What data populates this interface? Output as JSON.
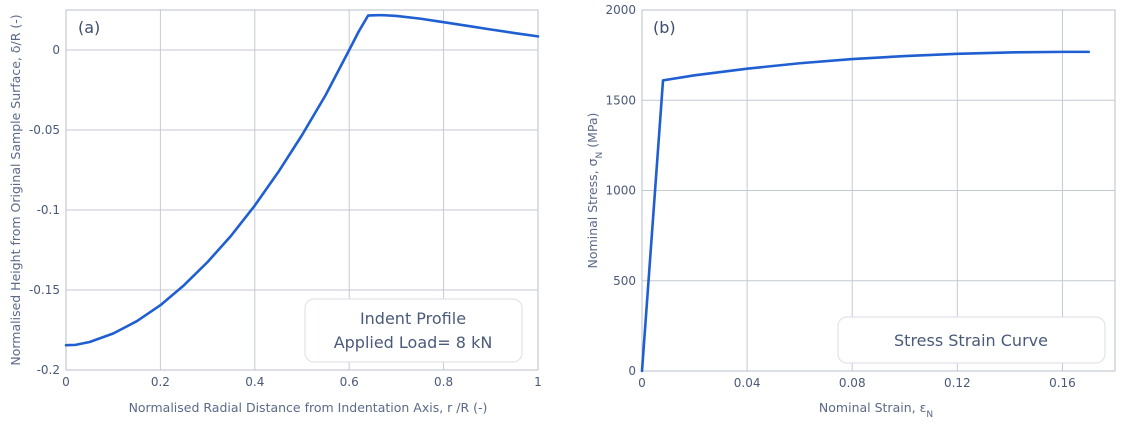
{
  "chart_data": [
    {
      "type": "line",
      "panel_label": "(a)",
      "xlabel": "Normalised Radial Distance from Indentation Axis, r /R (-)",
      "ylabel": "Normalised Height from Original Sample Surface, δ/R (-)",
      "xlim": [
        0,
        1
      ],
      "ylim": [
        -0.2,
        0.025
      ],
      "xticks": [
        0,
        0.2,
        0.4,
        0.6,
        0.8,
        1
      ],
      "xtick_labels": [
        "0",
        "0.2",
        "0.4",
        "0.6",
        "0.8",
        "1"
      ],
      "yticks": [
        -0.2,
        -0.15,
        -0.1,
        -0.05,
        0
      ],
      "ytick_labels": [
        "-0.2",
        "-0.15",
        "-0.1",
        "-0.05",
        "0"
      ],
      "grid": true,
      "legend": {
        "placement": "bottom-right",
        "lines": [
          "Indent Profile",
          "Applied Load= 8 kN"
        ]
      },
      "series": [
        {
          "color": "#1f5fd1",
          "x": [
            0,
            0.02,
            0.05,
            0.1,
            0.15,
            0.2,
            0.25,
            0.3,
            0.35,
            0.4,
            0.45,
            0.5,
            0.55,
            0.6,
            0.62,
            0.64,
            0.65,
            0.67,
            0.7,
            0.75,
            0.8,
            0.85,
            0.9,
            0.95,
            1.0
          ],
          "y": [
            -0.1845,
            -0.1843,
            -0.1825,
            -0.1772,
            -0.1695,
            -0.1595,
            -0.147,
            -0.1325,
            -0.116,
            -0.0972,
            -0.0762,
            -0.0532,
            -0.0282,
            0.0,
            0.0115,
            0.0215,
            0.0217,
            0.0218,
            0.0213,
            0.0196,
            0.0174,
            0.0151,
            0.0128,
            0.0106,
            0.0085
          ]
        }
      ]
    },
    {
      "type": "line",
      "panel_label": "(b)",
      "xlabel": "Nominal Strain, ε",
      "xlabel_sub": "N",
      "ylabel": "Nominal Stress, σ",
      "ylabel_sub": "N",
      "ylabel_suffix": " (MPa)",
      "xlim": [
        0,
        0.18
      ],
      "ylim": [
        0,
        2000
      ],
      "xticks": [
        0,
        0.04,
        0.08,
        0.12,
        0.16
      ],
      "xtick_labels": [
        "0",
        "0.04",
        "0.08",
        "0.12",
        "0.16"
      ],
      "yticks": [
        0,
        500,
        1000,
        1500,
        2000
      ],
      "ytick_labels": [
        "0",
        "500",
        "1000",
        "1500",
        "2000"
      ],
      "grid": true,
      "legend": {
        "placement": "bottom-right",
        "lines": [
          "Stress Strain Curve"
        ]
      },
      "series": [
        {
          "color": "#1f5fd1",
          "x": [
            0,
            0.008,
            0.02,
            0.04,
            0.06,
            0.08,
            0.1,
            0.12,
            0.14,
            0.16,
            0.17
          ],
          "y": [
            0,
            1610,
            1638,
            1675,
            1705,
            1728,
            1745,
            1757,
            1765,
            1768,
            1768
          ]
        }
      ]
    }
  ]
}
